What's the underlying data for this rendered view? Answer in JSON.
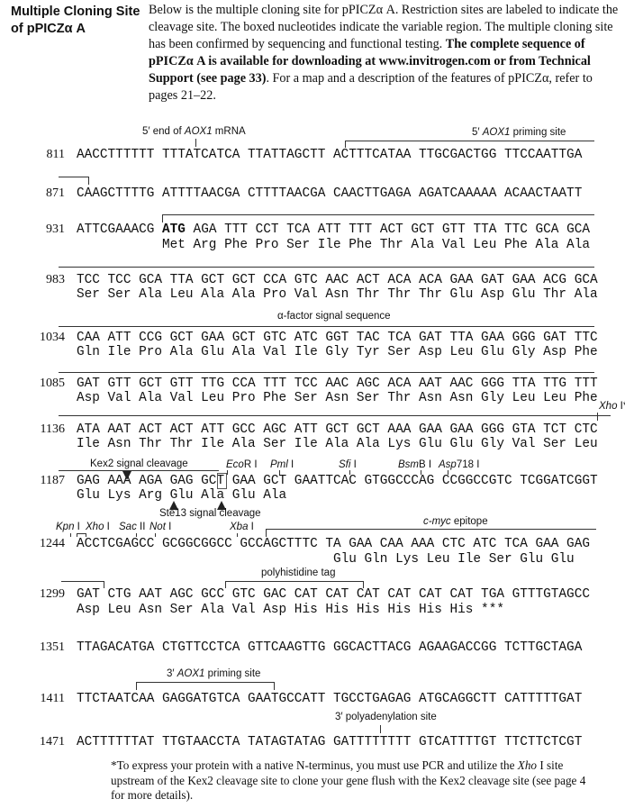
{
  "title": "Multiple Cloning Site of pPICZα A",
  "intro": {
    "p1": "Below is the multiple cloning site for pPICZα A. Restriction sites are labeled to indicate the cleavage site. The boxed nucleotides indicate the variable region. The multiple cloning site has been confirmed by sequencing and functional testing. ",
    "bold": "The complete sequence of pPICZα A is available for downloading at www.invitrogen.com or from Technical Support (see page 33)",
    "p2": ". For a map and a description of the features of pPICZα, refer to pages 21–22."
  },
  "rows": [
    {
      "num": "811",
      "seq": "AACCTTTTTT TTTATCATCA TTATTAGCTT ACTTTCATAA TTGCGACTGG TTCCAATTGA"
    },
    {
      "num": "871",
      "seq": "CAAGCTTTTG ATTTTAACGA CTTTTAACGA CAACTTGAGA AGATCAAAAA ACAACTAATT"
    },
    {
      "num": "931",
      "seq_pre": "ATTCGAAACG ",
      "seq_bold": "ATG",
      "seq": " AGA TTT CCT TCA ATT TTT ACT GCT GTT TTA TTC GCA GCA",
      "aa": "           Met Arg Phe Pro Ser Ile Phe Thr Ala Val Leu Phe Ala Ala"
    },
    {
      "num": "983",
      "seq": "TCC TCC GCA TTA GCT GCT CCA GTC AAC ACT ACA ACA GAA GAT GAA ACG GCA",
      "aa": "Ser Ser Ala Leu Ala Ala Pro Val Asn Thr Thr Thr Glu Asp Glu Thr Ala"
    },
    {
      "num": "1034",
      "seq": "CAA ATT CCG GCT GAA GCT GTC ATC GGT TAC TCA GAT TTA GAA GGG GAT TTC",
      "aa": "Gln Ile Pro Ala Glu Ala Val Ile Gly Tyr Ser Asp Leu Glu Gly Asp Phe"
    },
    {
      "num": "1085",
      "seq": "GAT GTT GCT GTT TTG CCA TTT TCC AAC AGC ACA AAT AAC GGG TTA TTG TTT",
      "aa": "Asp Val Ala Val Leu Pro Phe Ser Asn Ser Thr Asn Asn Gly Leu Leu Phe"
    },
    {
      "num": "1136",
      "seq": "ATA AAT ACT ACT ATT GCC AGC ATT GCT GCT AAA GAA GAA GGG GTA TCT CTC",
      "aa": "Ile Asn Thr Thr Ile Ala Ser Ile Ala Ala Lys Glu Glu Gly Val Ser Leu"
    },
    {
      "num": "1187",
      "seq": "GAG AAA AGA GAG GCT GAA GCT GAATTCAC GTGGCCCAG CCGGCCGTC TCGGATCGGT",
      "aa": "Glu Lys Arg Glu Ala Glu Ala"
    },
    {
      "num": "1244",
      "seq": "ACCTCGAGCC GCGGCGGCC GCCAGCTTTC TA GAA CAA AAA CTC ATC TCA GAA GAG",
      "aa": "                                 Glu Gln Lys Leu Ile Ser Glu Glu"
    },
    {
      "num": "1299",
      "seq": "GAT CTG AAT AGC GCC GTC GAC CAT CAT CAT CAT CAT CAT TGA GTTTGTAGCC",
      "aa": "Asp Leu Asn Ser Ala Val Asp His His His His His His ***"
    },
    {
      "num": "1351",
      "seq": "TTAGACATGA CTGTTCCTCA GTTCAAGTTG GGCACTTACG AGAAGACCGG TCTTGCTAGA"
    },
    {
      "num": "1411",
      "seq": "TTCTAATCAA GAGGATGTCA GAATGCCATT TGCCTGAGAG ATGCAGGCTT CATTTTTGAT"
    },
    {
      "num": "1471",
      "seq": "ACTTTTTTAT TTGTAACCTA TATAGTATAG GATTTTTTTT GTCATTTTGT TTCTTCTCGT"
    }
  ],
  "annotations": {
    "aox_mrna": {
      "pre": "5′ end of ",
      "it": "AOX1",
      "post": " mRNA"
    },
    "aox_5prime": {
      "pre": "5′ ",
      "it": "AOX1",
      "post": " priming site"
    },
    "alpha": "α-factor signal sequence",
    "xho_star": {
      "it": "Xho",
      "post": " I*"
    },
    "kex2": "Kex2 signal cleavage",
    "ste13": "Ste13 signal cleavage",
    "ecor": {
      "it": "Eco",
      "post": "R I"
    },
    "pml": {
      "it": "Pml",
      "post": " I"
    },
    "sfi": {
      "it": "Sfi",
      "post": " I"
    },
    "bsmb": {
      "it": "Bsm",
      "post": "B I"
    },
    "asp": {
      "it": "Asp",
      "post": "718 I"
    },
    "kpn": {
      "it": "Kpn",
      "post": " I"
    },
    "xho": {
      "it": "Xho",
      "post": " I"
    },
    "sac": {
      "it": "Sac",
      "post": " II"
    },
    "not": {
      "it": "Not",
      "post": " I"
    },
    "xba": {
      "it": "Xba",
      "post": " I"
    },
    "cmyc": {
      "it": "c-myc",
      "post": " epitope"
    },
    "polyhis": "polyhistidine tag",
    "aox_3prime": {
      "pre": "3′ ",
      "it": "AOX1",
      "post": " priming site"
    },
    "polya": "3′ polyadenylation site"
  },
  "footnote": {
    "p1": "*To express your protein with a native N-terminus, you must use PCR and utilize the ",
    "it": "Xho",
    "p2": " I site upstream of the Kex2 cleavage site to clone your gene flush with the Kex2 cleavage site (see page 4 for more details)."
  }
}
